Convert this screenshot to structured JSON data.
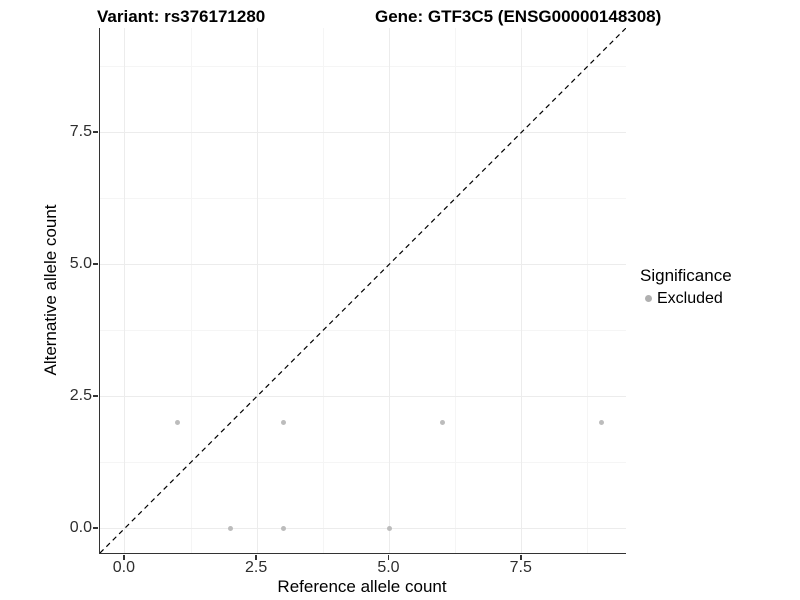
{
  "header": {
    "variant_title": "Variant: rs376171280",
    "gene_title": "Gene: GTF3C5 (ENSG00000148308)"
  },
  "chart_data": {
    "type": "scatter",
    "title": "Variant: rs376171280  Gene: GTF3C5 (ENSG00000148308)",
    "xlabel": "Reference allele count",
    "ylabel": "Alternative allele count",
    "xlim": [
      -0.47,
      9.47
    ],
    "ylim": [
      -0.47,
      9.47
    ],
    "x_ticks": [
      0.0,
      2.5,
      5.0,
      7.5
    ],
    "x_tick_labels": [
      "0.0",
      "2.5",
      "5.0",
      "7.5"
    ],
    "y_ticks": [
      0.0,
      2.5,
      5.0,
      7.5
    ],
    "y_tick_labels": [
      "0.0",
      "2.5",
      "5.0",
      "7.5"
    ],
    "minor_breaks": [
      1.25,
      3.75,
      6.25,
      8.75
    ],
    "grid": true,
    "series": [
      {
        "name": "Excluded",
        "color": "#bcbcbc",
        "points": [
          [
            1,
            2
          ],
          [
            3,
            2
          ],
          [
            6,
            2
          ],
          [
            9,
            2
          ],
          [
            2,
            0
          ],
          [
            3,
            0
          ],
          [
            5,
            0
          ]
        ]
      }
    ],
    "reference_line": {
      "kind": "identity",
      "slope": 1,
      "intercept": 0,
      "style": "dashed",
      "color": "#000000"
    },
    "legend": {
      "position": "right",
      "title": "Significance",
      "items": [
        {
          "label": "Excluded",
          "color": "#b0b0b0"
        }
      ]
    }
  }
}
